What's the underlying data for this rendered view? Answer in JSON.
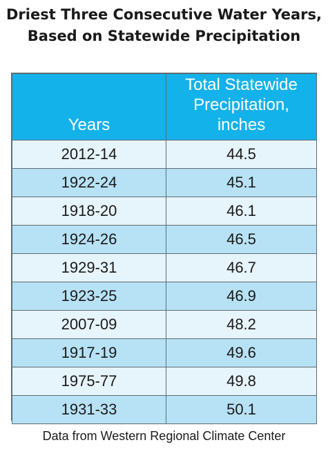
{
  "title_line1": "Driest Three Consecutive Water Years,",
  "title_line2": "Based on Statewide Precipitation",
  "source": "Data from Western Regional Climate Center",
  "colors": {
    "header": "#14b2ea",
    "row_light": "#e6f4fb",
    "row_dark": "#b7e2f5",
    "border": "#5f6b73"
  },
  "chart_data": {
    "type": "table",
    "columns": [
      "Years",
      "Total Statewide Precipitation, inches"
    ],
    "header_col2_lines": [
      "Total Statewide",
      "Precipitation,",
      "inches"
    ],
    "rows": [
      [
        "2012-14",
        "44.5"
      ],
      [
        "1922-24",
        "45.1"
      ],
      [
        "1918-20",
        "46.1"
      ],
      [
        "1924-26",
        "46.5"
      ],
      [
        "1929-31",
        "46.7"
      ],
      [
        "1923-25",
        "46.9"
      ],
      [
        "2007-09",
        "48.2"
      ],
      [
        "1917-19",
        "49.6"
      ],
      [
        "1975-77",
        "49.8"
      ],
      [
        "1931-33",
        "50.1"
      ]
    ]
  }
}
